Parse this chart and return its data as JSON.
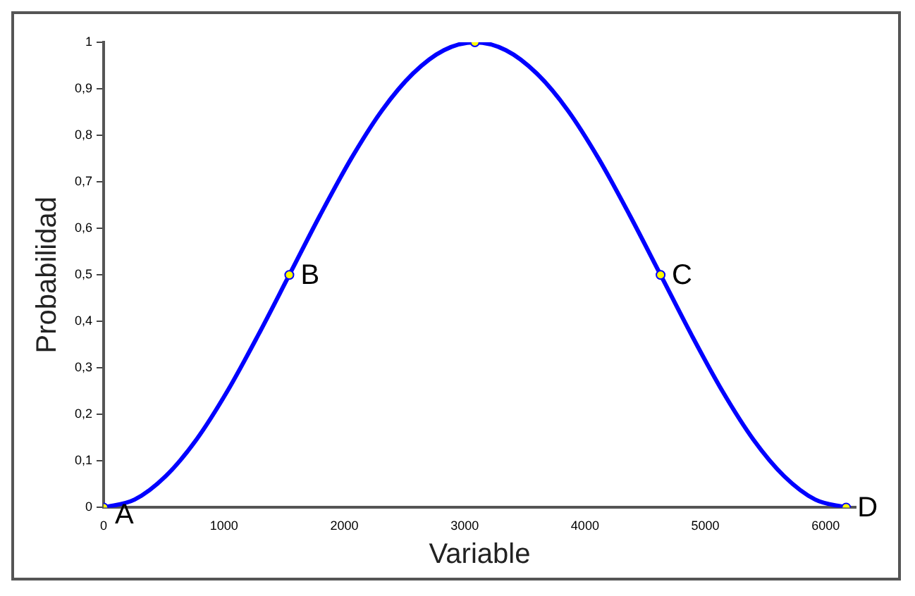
{
  "chart_data": {
    "type": "line",
    "xlabel": "Variable",
    "ylabel": "Probabilidad",
    "xlim": [
      0,
      6250
    ],
    "ylim": [
      0,
      1
    ],
    "xticks": [
      0,
      1000,
      2000,
      3000,
      4000,
      5000,
      6000
    ],
    "yticks": [
      0,
      {
        "value": 0.1,
        "label": "0,1"
      },
      {
        "value": 0.2,
        "label": "0,2"
      },
      {
        "value": 0.3,
        "label": "0,3"
      },
      {
        "value": 0.4,
        "label": "0,4"
      },
      {
        "value": 0.5,
        "label": "0,5"
      },
      {
        "value": 0.6,
        "label": "0,6"
      },
      {
        "value": 0.7,
        "label": "0,7"
      },
      {
        "value": 0.8,
        "label": "0,8"
      },
      {
        "value": 0.9,
        "label": "0,9"
      },
      1
    ],
    "grid": false,
    "legend": false,
    "line_style": "solid",
    "series": [
      {
        "type": "line",
        "color": "#0000ff",
        "marker": "none",
        "x": [
          0,
          257,
          514,
          771,
          1028,
          1285,
          1543,
          1800,
          2057,
          2314,
          2571,
          2828,
          3085,
          3342,
          3599,
          3856,
          4113,
          4370,
          4628,
          4885,
          5142,
          5399,
          5656,
          5913,
          6170
        ],
        "values": [
          0,
          0.017,
          0.067,
          0.146,
          0.25,
          0.371,
          0.5,
          0.629,
          0.75,
          0.854,
          0.933,
          0.983,
          1,
          0.983,
          0.933,
          0.854,
          0.75,
          0.629,
          0.5,
          0.371,
          0.25,
          0.146,
          0.067,
          0.017,
          0
        ]
      },
      {
        "type": "scatter",
        "color": "#ffff00",
        "marker": "circle",
        "x": [
          0,
          1543,
          3085,
          4628,
          6170
        ],
        "values": [
          0,
          0.5,
          1,
          0.5,
          0
        ]
      }
    ],
    "annotations": [
      {
        "text": "A",
        "x": 0,
        "y": 0
      },
      {
        "text": "B",
        "x": 1543,
        "y": 0.5
      },
      {
        "text": "C",
        "x": 4628,
        "y": 0.5
      },
      {
        "text": "D",
        "x": 6170,
        "y": 0
      }
    ]
  }
}
